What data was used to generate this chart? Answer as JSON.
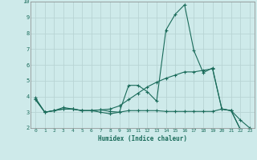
{
  "xlabel": "Humidex (Indice chaleur)",
  "background_color": "#ceeaea",
  "grid_color": "#b8d4d4",
  "line_color": "#1a6b5a",
  "xlim": [
    -0.5,
    23.5
  ],
  "ylim": [
    2,
    10
  ],
  "xticks": [
    0,
    1,
    2,
    3,
    4,
    5,
    6,
    7,
    8,
    9,
    10,
    11,
    12,
    13,
    14,
    15,
    16,
    17,
    18,
    19,
    20,
    21,
    22,
    23
  ],
  "yticks": [
    2,
    3,
    4,
    5,
    6,
    7,
    8,
    9,
    10
  ],
  "line1_x": [
    0,
    1,
    2,
    3,
    4,
    5,
    6,
    7,
    8,
    9,
    10,
    11,
    12,
    13,
    14,
    15,
    16,
    17,
    18,
    19,
    20,
    21,
    22,
    23
  ],
  "line1_y": [
    3.9,
    3.0,
    3.1,
    3.3,
    3.2,
    3.1,
    3.1,
    3.0,
    2.9,
    3.0,
    4.7,
    4.7,
    4.3,
    3.7,
    8.2,
    9.2,
    9.8,
    6.9,
    5.5,
    5.8,
    3.2,
    3.1,
    1.9,
    1.6
  ],
  "line2_x": [
    0,
    1,
    2,
    3,
    4,
    5,
    6,
    7,
    8,
    9,
    10,
    11,
    12,
    13,
    14,
    15,
    16,
    17,
    18,
    19,
    20,
    21,
    22,
    23
  ],
  "line2_y": [
    3.8,
    3.0,
    3.1,
    3.2,
    3.2,
    3.1,
    3.1,
    3.15,
    3.2,
    3.4,
    3.8,
    4.2,
    4.6,
    4.9,
    5.15,
    5.35,
    5.55,
    5.55,
    5.65,
    5.75,
    3.2,
    3.1,
    1.9,
    1.6
  ],
  "line3_x": [
    0,
    1,
    2,
    3,
    4,
    5,
    6,
    7,
    8,
    9,
    10,
    11,
    12,
    13,
    14,
    15,
    16,
    17,
    18,
    19,
    20,
    21,
    22,
    23
  ],
  "line3_y": [
    3.8,
    3.0,
    3.1,
    3.2,
    3.2,
    3.1,
    3.1,
    3.15,
    3.05,
    3.0,
    3.1,
    3.1,
    3.1,
    3.1,
    3.05,
    3.05,
    3.05,
    3.05,
    3.05,
    3.05,
    3.2,
    3.1,
    2.5,
    2.0
  ]
}
